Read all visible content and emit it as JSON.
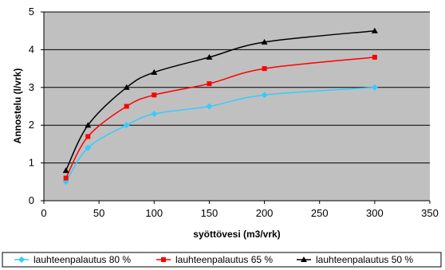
{
  "chart_data": {
    "type": "line",
    "title": "",
    "xlabel": "syöttövesi (m3/vrk)",
    "ylabel": "Annostelu (l/vrk)",
    "xlim": [
      0,
      350
    ],
    "ylim": [
      0,
      5
    ],
    "x_ticks": [
      "0",
      "50",
      "100",
      "150",
      "200",
      "250",
      "300",
      "350"
    ],
    "y_ticks": [
      "0",
      "1",
      "2",
      "3",
      "4",
      "5"
    ],
    "grid": "horizontal",
    "legend_position": "bottom",
    "plot_background": "#c0c0c0",
    "x": [
      20,
      40,
      75,
      100,
      150,
      200,
      300
    ],
    "series": [
      {
        "name": "lauhteenpalautus 80 %",
        "color": "#33ccff",
        "marker": "diamond",
        "values": [
          0.5,
          1.4,
          2.0,
          2.3,
          2.5,
          2.8,
          3.0
        ]
      },
      {
        "name": "lauhteenpalautus 65 %",
        "color": "#ff0000",
        "marker": "square",
        "values": [
          0.6,
          1.7,
          2.5,
          2.8,
          3.1,
          3.5,
          3.8
        ]
      },
      {
        "name": "lauhteenpalautus 50 %",
        "color": "#000000",
        "marker": "triangle",
        "values": [
          0.8,
          2.0,
          3.0,
          3.4,
          3.8,
          4.2,
          4.5
        ]
      }
    ]
  }
}
